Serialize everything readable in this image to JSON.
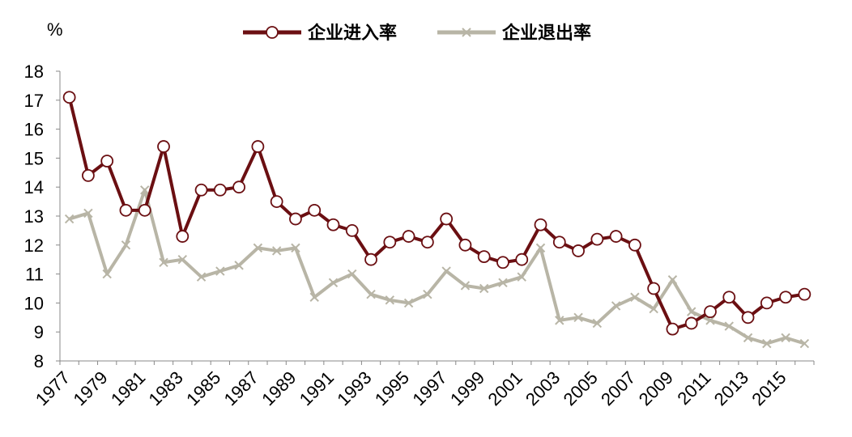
{
  "chart_data": {
    "type": "line",
    "ylabel": "%",
    "ylim": [
      8,
      18
    ],
    "yticks": [
      8,
      9,
      10,
      11,
      12,
      13,
      14,
      15,
      16,
      17,
      18
    ],
    "x": [
      1977,
      1978,
      1979,
      1980,
      1981,
      1982,
      1983,
      1984,
      1985,
      1986,
      1987,
      1988,
      1989,
      1990,
      1991,
      1992,
      1993,
      1994,
      1995,
      1996,
      1997,
      1998,
      1999,
      2000,
      2001,
      2002,
      2003,
      2004,
      2005,
      2006,
      2007,
      2008,
      2009,
      2010,
      2011,
      2012,
      2013,
      2014,
      2015,
      2016
    ],
    "xtick_labels": [
      "1977",
      "1979",
      "1981",
      "1983",
      "1985",
      "1987",
      "1989",
      "1991",
      "1993",
      "1995",
      "1997",
      "1999",
      "2001",
      "2003",
      "2005",
      "2007",
      "2009",
      "2011",
      "2013",
      "2015"
    ],
    "grid": false,
    "legend_position": "top",
    "series": [
      {
        "name": "企业进入率",
        "color": "#6b0f12",
        "marker": "circle",
        "values": [
          17.1,
          14.4,
          14.9,
          13.2,
          13.2,
          15.4,
          12.3,
          13.9,
          13.9,
          14.0,
          15.4,
          13.5,
          12.9,
          13.2,
          12.7,
          12.5,
          11.5,
          12.1,
          12.3,
          12.1,
          12.9,
          12.0,
          11.6,
          11.4,
          11.5,
          12.7,
          12.1,
          11.8,
          12.2,
          12.3,
          12.0,
          10.5,
          9.1,
          9.3,
          9.7,
          10.2,
          9.5,
          10.0,
          10.2,
          10.3
        ]
      },
      {
        "name": "企业退出率",
        "color": "#b8b5a6",
        "marker": "x",
        "values": [
          12.9,
          13.1,
          11.0,
          12.0,
          13.9,
          11.4,
          11.5,
          10.9,
          11.1,
          11.3,
          11.9,
          11.8,
          11.9,
          10.2,
          10.7,
          11.0,
          10.3,
          10.1,
          10.0,
          10.3,
          11.1,
          10.6,
          10.5,
          10.7,
          10.9,
          11.9,
          9.4,
          9.5,
          9.3,
          9.9,
          10.2,
          9.8,
          10.8,
          9.7,
          9.4,
          9.2,
          8.8,
          8.6,
          8.8,
          8.6
        ]
      }
    ]
  }
}
